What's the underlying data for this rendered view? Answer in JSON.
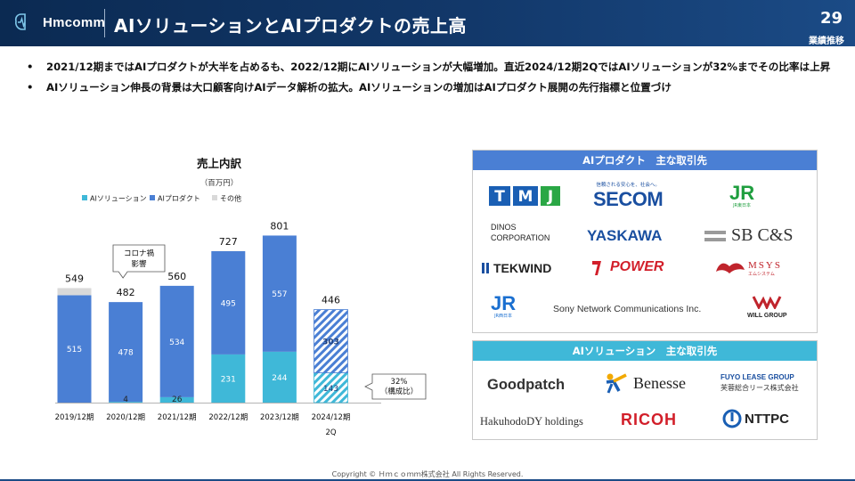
{
  "header": {
    "logo_text": "Hmcomm",
    "title": "AIソリューションとAIプロダクトの売上高",
    "page_number": "29",
    "section": "業績推移"
  },
  "bullets": [
    "2021/12期まではAIプロダクトが大半を占めるも、2022/12期にAIソリューションが大幅増加。直近2024/12期2QではAIソリューションが32%までその比率は上昇",
    "AIソリューション伸長の背景は大口顧客向けAIデータ解析の拡大。AIソリューションの増加はAIプロダクト展開の先行指標と位置づけ"
  ],
  "chart_data": {
    "type": "bar",
    "stacked": true,
    "title": "売上内訳",
    "unit_label": "（百万円）",
    "categories": [
      "2019/12期",
      "2020/12期",
      "2021/12期",
      "2022/12期",
      "2023/12期",
      "2024/12期 2Q"
    ],
    "series": [
      {
        "name": "AIソリューション",
        "color": "#3fb8d8",
        "values": [
          0,
          4,
          26,
          231,
          244,
          143
        ]
      },
      {
        "name": "AIプロダクト",
        "color": "#4a7fd4",
        "values": [
          515,
          478,
          534,
          495,
          557,
          303
        ]
      },
      {
        "name": "その他",
        "color": "#d9d9d9",
        "values": [
          34,
          0,
          0,
          1,
          0,
          0
        ]
      }
    ],
    "totals": [
      549,
      482,
      560,
      727,
      801,
      446
    ],
    "hatched_category": "2024/12期 2Q",
    "ylim": [
      0,
      820
    ],
    "grid": false,
    "legend": "top-left",
    "annotations": [
      {
        "category": "2020/12期",
        "text": [
          "コロナ禍",
          "影響"
        ]
      },
      {
        "category": "2024/12期 2Q",
        "text": [
          "32%",
          "（構成比）"
        ]
      }
    ]
  },
  "product_panel": {
    "title": "AIプロダクト　主な取引先",
    "clients": [
      "TMJ",
      "SECOM",
      "JR東日本",
      "DINOS CORPORATION",
      "YASKAWA",
      "SB C&S",
      "TEKWIND",
      "POWER",
      "MSYS",
      "JR西日本",
      "Sony Network Communications Inc.",
      "WILL GROUP"
    ],
    "secom_tagline": "信頼される安心を、社会へ。",
    "msys_sub": "エムシステム",
    "jr_east_sub": "JR東日本",
    "jr_west_sub": "JR西日本"
  },
  "solution_panel": {
    "title": "AIソリューション　主な取引先",
    "clients": [
      "Goodpatch",
      "Benesse",
      "FUYO LEASE GROUP",
      "芙蓉総合リース株式会社",
      "HakuhodoDY holdings",
      "RICOH",
      "NTTPC"
    ]
  },
  "footer": {
    "copyright": "Copyright © Ｈｍｃｏｍｍ株式会社 All Rights Reserved."
  }
}
